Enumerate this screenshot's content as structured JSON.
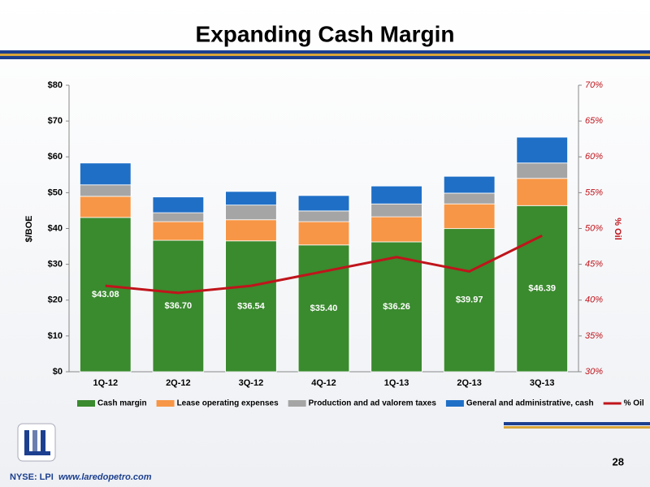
{
  "chart_data": {
    "type": "bar",
    "stacked": true,
    "title": "Expanding Cash Margin",
    "y_label": "$/BOE",
    "y2_label": "% Oil",
    "categories": [
      "1Q-12",
      "2Q-12",
      "3Q-12",
      "4Q-12",
      "1Q-13",
      "2Q-13",
      "3Q-13"
    ],
    "series": [
      {
        "name": "Cash margin",
        "color": "#3a8a2e",
        "values": [
          43.08,
          36.7,
          36.54,
          35.4,
          36.26,
          39.97,
          46.39
        ],
        "value_labels": [
          "$43.08",
          "$36.70",
          "$36.54",
          "$35.40",
          "$36.26",
          "$39.97",
          "$46.39"
        ]
      },
      {
        "name": "Lease operating expenses",
        "color": "#f79646",
        "values": [
          5.9,
          5.2,
          5.9,
          6.5,
          7.0,
          6.9,
          7.6
        ]
      },
      {
        "name": "Production and ad valorem taxes",
        "color": "#a5a5a5",
        "values": [
          3.2,
          2.5,
          4.1,
          3.0,
          3.6,
          3.0,
          4.3
        ]
      },
      {
        "name": "General and administrative, cash",
        "color": "#1f6fc6",
        "values": [
          6.1,
          4.4,
          3.8,
          4.3,
          5.0,
          4.7,
          7.2
        ]
      },
      {
        "name": "% Oil",
        "type": "line",
        "axis": "y2",
        "color": "#c0141b",
        "values": [
          42,
          41,
          42,
          44,
          46,
          44,
          49
        ]
      }
    ],
    "ylim": [
      0,
      80
    ],
    "yticks": [
      {
        "value": 0,
        "label": "$0"
      },
      {
        "value": 10,
        "label": "$10"
      },
      {
        "value": 20,
        "label": "$20"
      },
      {
        "value": 30,
        "label": "$30"
      },
      {
        "value": 40,
        "label": "$40"
      },
      {
        "value": 50,
        "label": "$50"
      },
      {
        "value": 60,
        "label": "$60"
      },
      {
        "value": 70,
        "label": "$70"
      },
      {
        "value": 80,
        "label": "$80"
      }
    ],
    "y2lim": [
      30,
      70
    ],
    "y2ticks": [
      {
        "value": 30,
        "label": "30%"
      },
      {
        "value": 35,
        "label": "35%"
      },
      {
        "value": 40,
        "label": "40%"
      },
      {
        "value": 45,
        "label": "45%"
      },
      {
        "value": 50,
        "label": "50%"
      },
      {
        "value": 55,
        "label": "55%"
      },
      {
        "value": 60,
        "label": "60%"
      },
      {
        "value": 65,
        "label": "65%"
      },
      {
        "value": 70,
        "label": "70%"
      }
    ],
    "legend": "bottom"
  },
  "footer": {
    "page_number": "28",
    "ticker": "NYSE: LPI",
    "website": "www.laredopetro.com"
  }
}
